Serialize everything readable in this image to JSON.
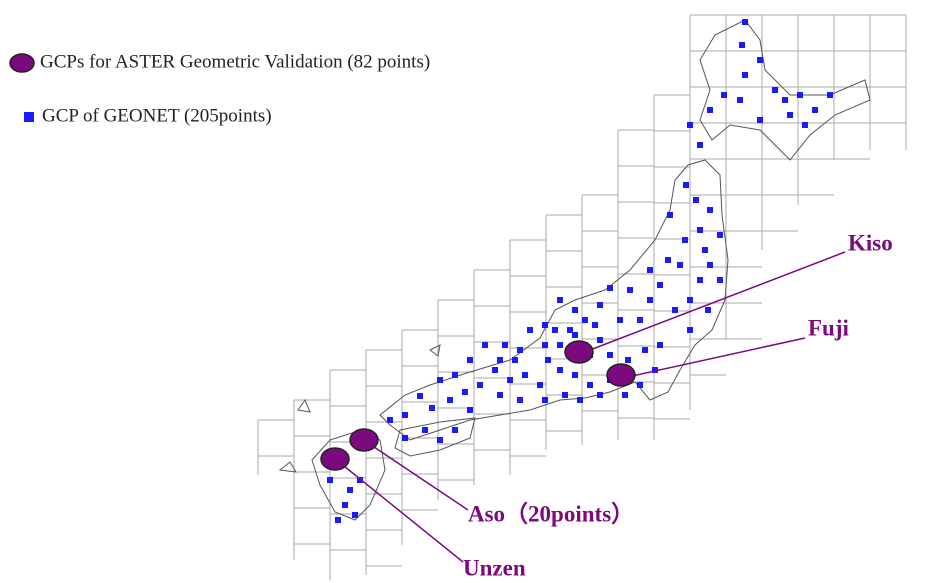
{
  "legend": [
    {
      "label": "GCPs for ASTER Geometric Validation  (82 points)"
    },
    {
      "label": "GCP of GEONET (205points)"
    }
  ],
  "sites": [
    {
      "label": "Kiso"
    },
    {
      "label": "Fuji"
    },
    {
      "label": "Aso（20points）"
    },
    {
      "label": "Unzen"
    }
  ]
}
